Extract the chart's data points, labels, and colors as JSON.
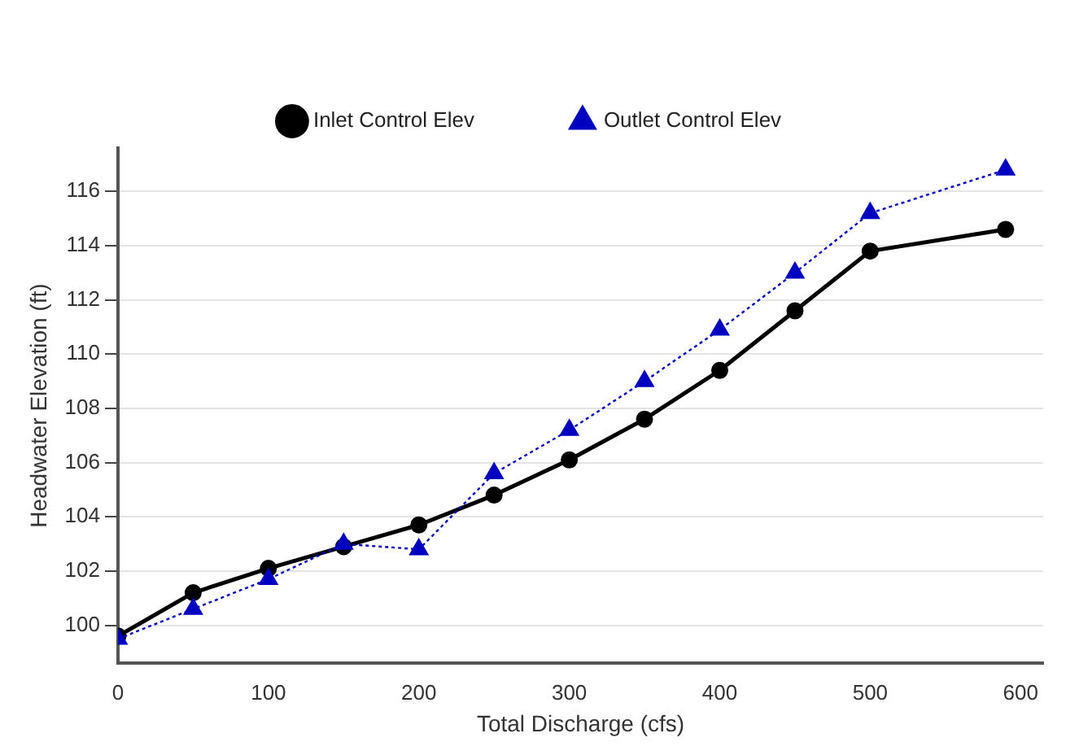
{
  "chart_data": {
    "type": "line",
    "xlabel": "Total Discharge (cfs)",
    "ylabel": "Headwater Elevation (ft)",
    "xlim": [
      0,
      615
    ],
    "xticks": [
      0,
      100,
      200,
      300,
      400,
      500,
      600
    ],
    "ylim": [
      98.6,
      117.6
    ],
    "yticks": [
      100,
      102,
      104,
      106,
      108,
      110,
      112,
      114,
      116
    ],
    "grid": "y",
    "legend": "top",
    "series": [
      {
        "name": "Inlet Control Elev",
        "color": "#000000",
        "marker": "circle",
        "line_style": "solid",
        "x": [
          0,
          50,
          100,
          150,
          200,
          250,
          300,
          350,
          400,
          450,
          500,
          590
        ],
        "values": [
          99.6,
          101.2,
          102.1,
          102.9,
          103.7,
          104.8,
          106.1,
          107.6,
          109.4,
          111.6,
          113.8,
          114.6
        ]
      },
      {
        "name": "Outlet Control Elev",
        "color": "#0000c0",
        "marker": "triangle",
        "line_style": "dotted",
        "x": [
          0,
          50,
          100,
          150,
          200,
          250,
          300,
          350,
          400,
          450,
          500,
          590
        ],
        "values": [
          99.5,
          100.6,
          101.7,
          103.0,
          102.8,
          105.6,
          107.2,
          109.0,
          110.9,
          113.0,
          115.2,
          116.8
        ]
      }
    ]
  }
}
